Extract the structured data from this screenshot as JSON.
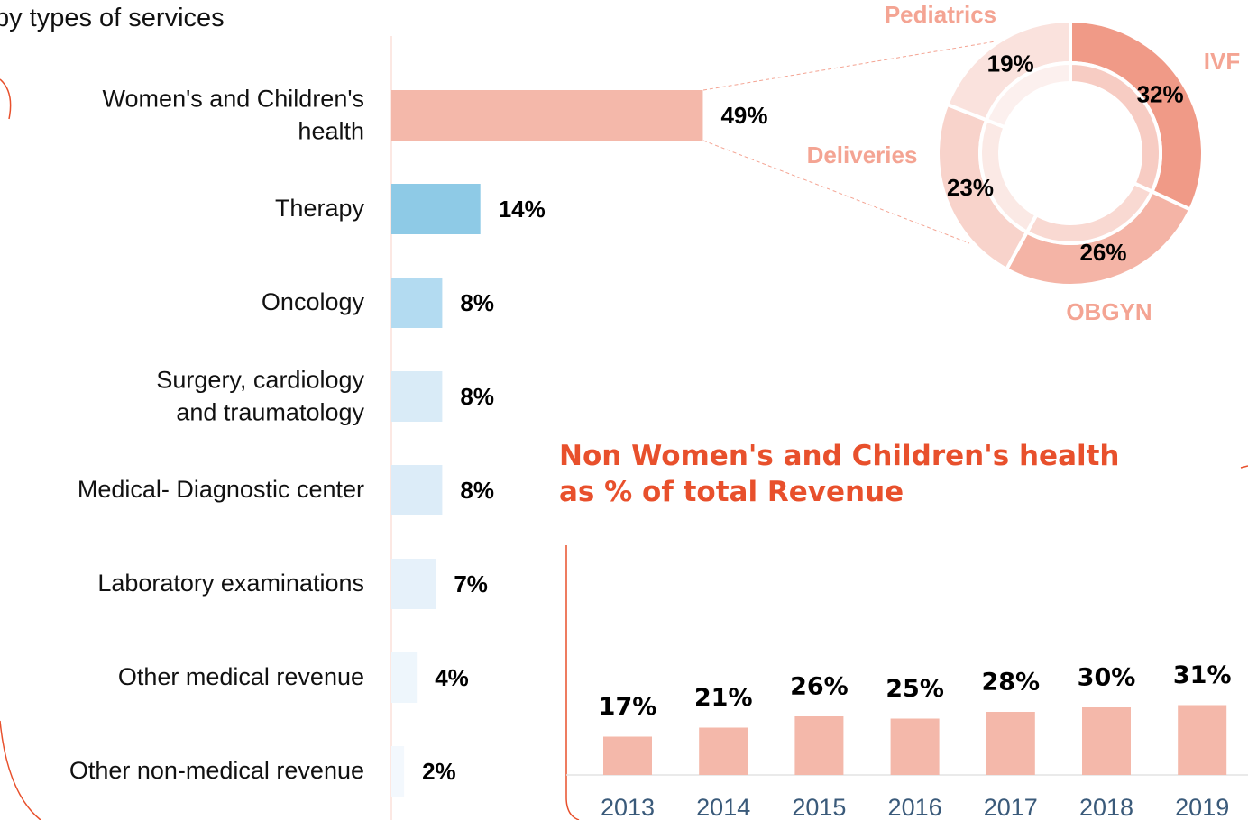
{
  "chart_data": [
    {
      "type": "hbar",
      "title": "by types of services",
      "categories": [
        "Women's and Children's\nhealth",
        "Therapy",
        "Oncology",
        "Surgery, cardiology\nand traumatology",
        "Medical- Diagnostic center",
        "Laboratory examinations",
        "Other medical revenue",
        "Other non-medical revenue"
      ],
      "values": [
        49,
        14,
        8,
        8,
        8,
        7,
        4,
        2
      ],
      "value_labels": [
        "49%",
        "14%",
        "8%",
        "8%",
        "8%",
        "7%",
        "4%",
        "2%"
      ],
      "colors": [
        "#f4b8aa",
        "#8ecae6",
        "#b3dbf1",
        "#d9ebf7",
        "#dcecf8",
        "#e6f1fa",
        "#eef6fc",
        "#f3f8fd"
      ]
    },
    {
      "type": "donut",
      "categories": [
        "IVF",
        "OBGYN",
        "Deliveries",
        "Pediatrics"
      ],
      "values": [
        32,
        26,
        23,
        19
      ],
      "value_labels": [
        "32%",
        "26%",
        "23%",
        "19%"
      ],
      "colors": [
        "#f09a87",
        "#f4b4a6",
        "#f8d3cb",
        "#fae2dd"
      ]
    },
    {
      "type": "bar",
      "title": "Non Women's and Children's health\nas % of total Revenue",
      "categories": [
        "2013",
        "2014",
        "2015",
        "2016",
        "2017",
        "2018",
        "2019"
      ],
      "values": [
        17,
        21,
        26,
        25,
        28,
        30,
        31
      ],
      "value_labels": [
        "17%",
        "21%",
        "26%",
        "25%",
        "28%",
        "30%",
        "31%"
      ],
      "color": "#f4b8aa"
    }
  ]
}
